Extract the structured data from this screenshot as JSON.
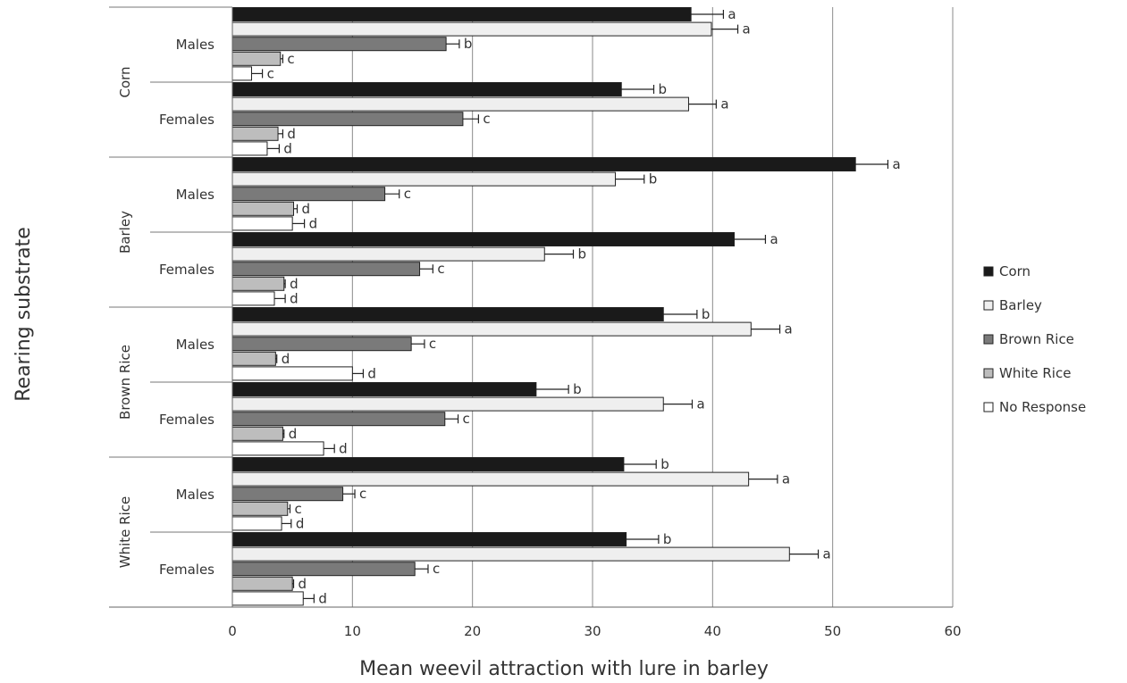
{
  "chart_data": {
    "type": "bar",
    "orientation": "horizontal",
    "xlabel": "Mean weevil attraction with lure in barley",
    "ylabel": "Rearing substrate",
    "xlim": [
      0,
      60
    ],
    "xticks": [
      0,
      10,
      20,
      30,
      40,
      50,
      60
    ],
    "grid": "vertical",
    "legend_position": "right",
    "substrates": [
      "Corn",
      "Barley",
      "Brown Rice",
      "White Rice"
    ],
    "sexes": [
      "Males",
      "Females"
    ],
    "series": [
      {
        "name": "Corn",
        "color": "#1a1a1a"
      },
      {
        "name": "Barley",
        "color": "#efefef"
      },
      {
        "name": "Brown Rice",
        "color": "#7a7a7a"
      },
      {
        "name": "White Rice",
        "color": "#bdbdbd"
      },
      {
        "name": "No Response",
        "color": "#ffffff"
      }
    ],
    "groups": [
      {
        "substrate": "Corn",
        "sex": "Males",
        "values": [
          38.2,
          39.9,
          17.8,
          4.0,
          1.6
        ],
        "errors": [
          2.7,
          2.2,
          1.1,
          0.2,
          0.9
        ],
        "letters": [
          "a",
          "a",
          "b",
          "c",
          "c"
        ]
      },
      {
        "substrate": "Corn",
        "sex": "Females",
        "values": [
          32.4,
          38.0,
          19.2,
          3.8,
          2.9
        ],
        "errors": [
          2.7,
          2.3,
          1.3,
          0.4,
          1.0
        ],
        "letters": [
          "b",
          "a",
          "c",
          "d",
          "d"
        ]
      },
      {
        "substrate": "Barley",
        "sex": "Males",
        "values": [
          51.9,
          31.9,
          12.7,
          5.1,
          5.0
        ],
        "errors": [
          2.7,
          2.4,
          1.2,
          0.3,
          1.0
        ],
        "letters": [
          "a",
          "b",
          "c",
          "d",
          "d"
        ]
      },
      {
        "substrate": "Barley",
        "sex": "Females",
        "values": [
          41.8,
          26.0,
          15.6,
          4.3,
          3.5
        ],
        "errors": [
          2.6,
          2.4,
          1.1,
          0.1,
          0.9
        ],
        "letters": [
          "a",
          "b",
          "c",
          "d",
          "d"
        ]
      },
      {
        "substrate": "Brown Rice",
        "sex": "Males",
        "values": [
          35.9,
          43.2,
          14.9,
          3.6,
          10.0
        ],
        "errors": [
          2.8,
          2.4,
          1.1,
          0.1,
          0.9
        ],
        "letters": [
          "b",
          "a",
          "c",
          "d",
          "d"
        ]
      },
      {
        "substrate": "Brown Rice",
        "sex": "Females",
        "values": [
          25.3,
          35.9,
          17.7,
          4.2,
          7.6
        ],
        "errors": [
          2.7,
          2.4,
          1.1,
          0.1,
          0.9
        ],
        "letters": [
          "b",
          "a",
          "c",
          "d",
          "d"
        ]
      },
      {
        "substrate": "White Rice",
        "sex": "Males",
        "values": [
          32.6,
          43.0,
          9.2,
          4.6,
          4.1
        ],
        "errors": [
          2.7,
          2.4,
          1.0,
          0.2,
          0.8
        ],
        "letters": [
          "b",
          "a",
          "c",
          "c",
          "d"
        ]
      },
      {
        "substrate": "White Rice",
        "sex": "Females",
        "values": [
          32.8,
          46.4,
          15.2,
          5.0,
          5.9
        ],
        "errors": [
          2.7,
          2.4,
          1.1,
          0.1,
          0.9
        ],
        "letters": [
          "b",
          "a",
          "c",
          "d",
          "d"
        ]
      }
    ]
  }
}
